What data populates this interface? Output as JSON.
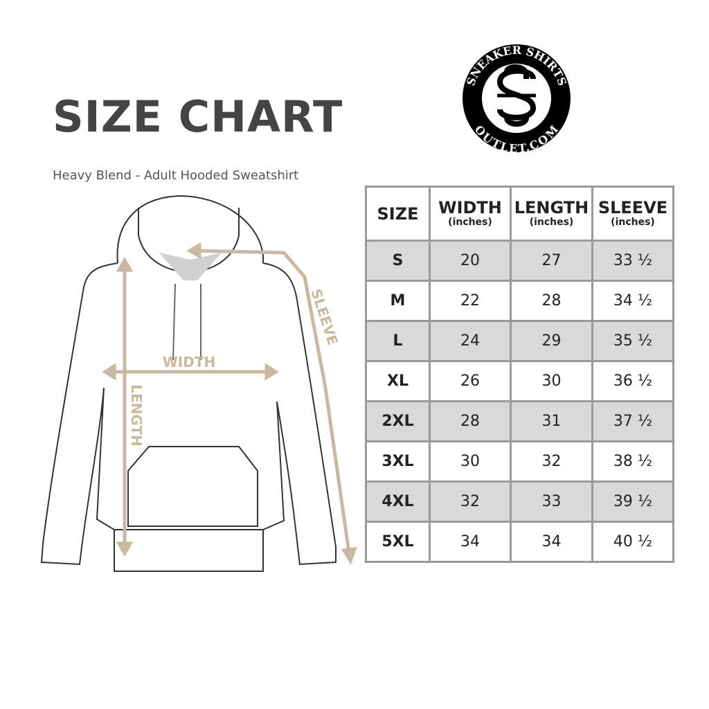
{
  "header": {
    "title": "SIZE CHART",
    "subtitle": "Heavy Blend - Adult Hooded Sweatshirt"
  },
  "logo": {
    "text_top": "SNEAKER SHIRTS",
    "text_bottom": "OUTLET.COM",
    "monogram": "SS"
  },
  "diagram": {
    "width_label": "WIDTH",
    "length_label": "LENGTH",
    "sleeve_label": "SLEEVE",
    "accent_color": "#c9b9a1"
  },
  "chart_data": {
    "type": "table",
    "columns": [
      {
        "label": "SIZE",
        "unit": ""
      },
      {
        "label": "WIDTH",
        "unit": "(inches)"
      },
      {
        "label": "LENGTH",
        "unit": "(inches)"
      },
      {
        "label": "SLEEVE",
        "unit": "(inches)"
      }
    ],
    "rows": [
      [
        "S",
        "20",
        "27",
        "33 ½"
      ],
      [
        "M",
        "22",
        "28",
        "34 ½"
      ],
      [
        "L",
        "24",
        "29",
        "35 ½"
      ],
      [
        "XL",
        "26",
        "30",
        "36 ½"
      ],
      [
        "2XL",
        "28",
        "31",
        "37 ½"
      ],
      [
        "3XL",
        "30",
        "32",
        "38 ½"
      ],
      [
        "4XL",
        "32",
        "33",
        "39 ½"
      ],
      [
        "5XL",
        "34",
        "34",
        "40 ½"
      ]
    ]
  }
}
